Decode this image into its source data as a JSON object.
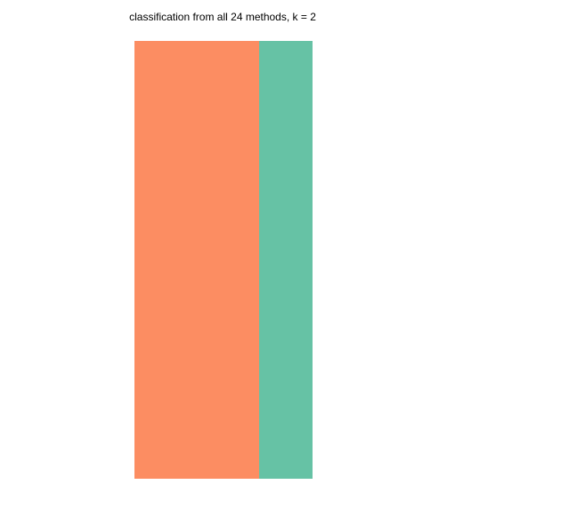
{
  "chart_data": {
    "type": "heatmap",
    "title": "classification from all 24 methods, k = 2",
    "xlabel": "",
    "ylabel": "",
    "grid": false,
    "legend": "none",
    "k": 2,
    "columns": [
      {
        "class": 1,
        "share": 0.7,
        "color": "#FC8D62"
      },
      {
        "class": 2,
        "share": 0.3,
        "color": "#66C2A5"
      }
    ]
  }
}
